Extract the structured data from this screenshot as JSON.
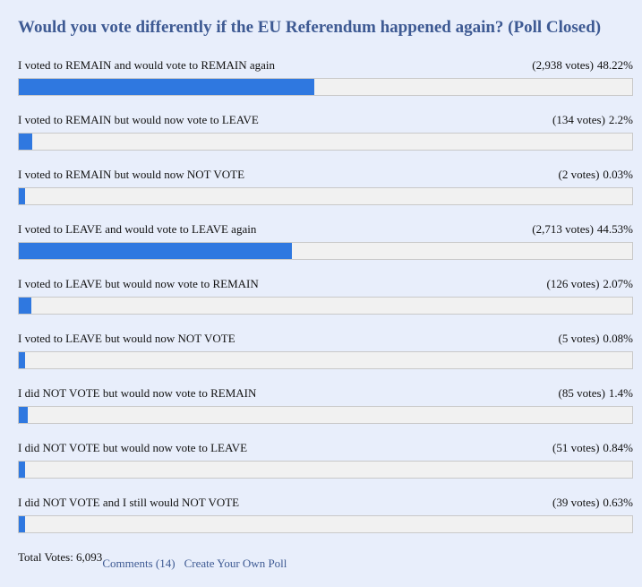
{
  "poll": {
    "title": "Would you vote differently if the EU Referendum happened again? (Poll Closed)",
    "colors": {
      "title": "#3e5a93",
      "bar_fill": "#2f78e0",
      "bar_track": "#f1f1f1",
      "background": "#e8eefb"
    },
    "options": [
      {
        "label": "I voted to REMAIN and would vote to REMAIN again",
        "votes": "(2,938 votes)",
        "percent": "48.22%",
        "share": 48.22
      },
      {
        "label": "I voted to REMAIN but would now vote to LEAVE",
        "votes": "(134 votes)",
        "percent": "2.2%",
        "share": 2.2
      },
      {
        "label": "I voted to REMAIN but would now NOT VOTE",
        "votes": "(2 votes)",
        "percent": "0.03%",
        "share": 0.03
      },
      {
        "label": "I voted to LEAVE and would vote to LEAVE again",
        "votes": "(2,713 votes)",
        "percent": "44.53%",
        "share": 44.53
      },
      {
        "label": "I voted to LEAVE but would now vote to REMAIN",
        "votes": "(126 votes)",
        "percent": "2.07%",
        "share": 2.07
      },
      {
        "label": "I voted to LEAVE but would now NOT VOTE",
        "votes": "(5 votes)",
        "percent": "0.08%",
        "share": 0.08
      },
      {
        "label": "I did NOT VOTE but would now vote to REMAIN",
        "votes": "(85 votes)",
        "percent": "1.4%",
        "share": 1.4
      },
      {
        "label": "I did NOT VOTE but would now vote to LEAVE",
        "votes": "(51 votes)",
        "percent": "0.84%",
        "share": 0.84
      },
      {
        "label": "I did NOT VOTE and I still would NOT VOTE",
        "votes": "(39 votes)",
        "percent": "0.63%",
        "share": 0.63
      }
    ]
  },
  "footer": {
    "total_votes": "Total Votes: 6,093",
    "comments_link": "Comments (14)",
    "create_poll_link": "Create Your Own Poll"
  }
}
